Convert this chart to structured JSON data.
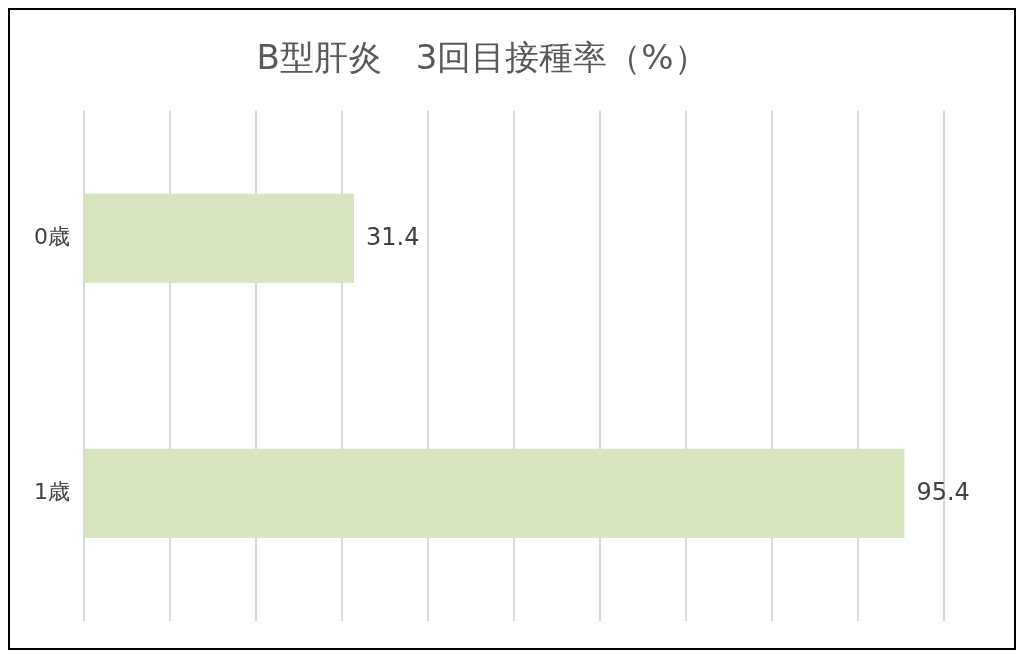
{
  "chart_data": {
    "type": "bar",
    "orientation": "horizontal",
    "title": "B型肝炎　3回目接種率（%）",
    "categories": [
      "0歳",
      "1歳"
    ],
    "values": [
      31.4,
      95.4
    ],
    "color": "#d7e4bd",
    "xlim": [
      0,
      100
    ],
    "xticks": [
      {
        "value": 0,
        "label": null
      },
      {
        "value": 10,
        "label": null
      },
      {
        "value": 20,
        "label": null
      },
      {
        "value": 30,
        "label": null
      },
      {
        "value": 40,
        "label": null
      },
      {
        "value": 50,
        "label": null
      },
      {
        "value": 60,
        "label": null
      },
      {
        "value": 70,
        "label": null
      },
      {
        "value": 80,
        "label": null
      },
      {
        "value": 90,
        "label": null
      },
      {
        "value": 100,
        "label": null
      }
    ],
    "grid": "x",
    "tick_labels": "y",
    "data_labels": true,
    "legend": false
  }
}
